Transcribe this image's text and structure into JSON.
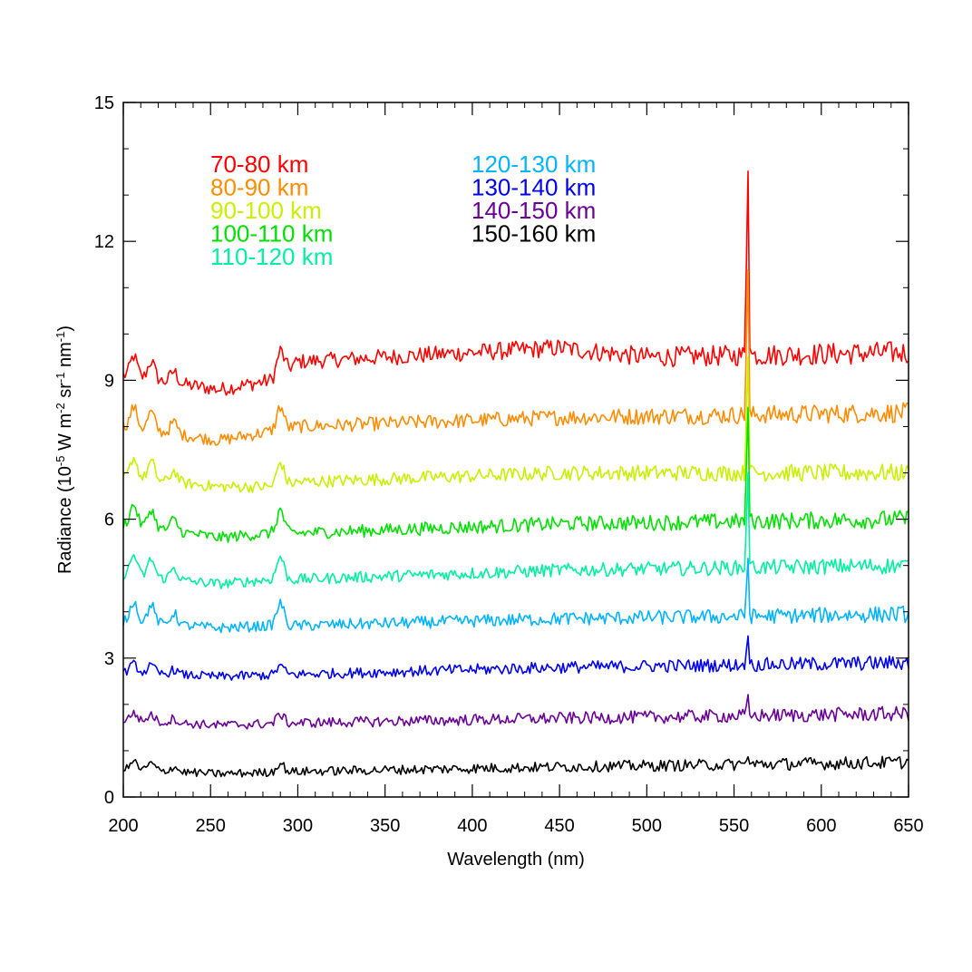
{
  "chart_data": {
    "type": "line",
    "xlabel": "Wavelength (nm)",
    "ylabel_parts": [
      "Radiance (10",
      "-5",
      " W m",
      "-2",
      " sr",
      "-1",
      " nm",
      "-1",
      ")"
    ],
    "xlim": [
      200,
      650
    ],
    "ylim": [
      0,
      15
    ],
    "x_ticks": [
      200,
      250,
      300,
      350,
      400,
      450,
      500,
      550,
      600,
      650
    ],
    "y_ticks": [
      0,
      3,
      6,
      9,
      12,
      15
    ],
    "grid": false,
    "legend_position": "top-left, two columns",
    "peak_wavelength_nm": 557.7,
    "x_sampling": {
      "start": 200,
      "end": 650,
      "step": 1
    },
    "series": [
      {
        "name": "70-80 km",
        "color": "#ff0000",
        "baseline": [
          [
            200,
            9.1
          ],
          [
            255,
            8.8
          ],
          [
            285,
            9.0
          ],
          [
            300,
            9.4
          ],
          [
            450,
            9.7
          ],
          [
            500,
            9.5
          ],
          [
            650,
            9.6
          ]
        ],
        "peak": 14.3,
        "noise": 0.14
      },
      {
        "name": "80-90 km",
        "color": "#ff8c00",
        "baseline": [
          [
            200,
            8.0
          ],
          [
            255,
            7.7
          ],
          [
            285,
            7.9
          ],
          [
            300,
            8.0
          ],
          [
            450,
            8.2
          ],
          [
            650,
            8.3
          ]
        ],
        "peak": 12.0,
        "noise": 0.12
      },
      {
        "name": "90-100 km",
        "color": "#c8f000",
        "baseline": [
          [
            200,
            6.9
          ],
          [
            255,
            6.7
          ],
          [
            285,
            6.7
          ],
          [
            300,
            6.8
          ],
          [
            450,
            7.0
          ],
          [
            650,
            7.0
          ]
        ],
        "peak": 10.0,
        "noise": 0.11
      },
      {
        "name": "100-110 km",
        "color": "#00e000",
        "baseline": [
          [
            200,
            5.9
          ],
          [
            255,
            5.6
          ],
          [
            285,
            5.7
          ],
          [
            300,
            5.7
          ],
          [
            450,
            5.9
          ],
          [
            650,
            6.0
          ]
        ],
        "peak": 8.9,
        "noise": 0.11
      },
      {
        "name": "110-120 km",
        "color": "#00f0a0",
        "baseline": [
          [
            200,
            4.8
          ],
          [
            255,
            4.6
          ],
          [
            285,
            4.7
          ],
          [
            300,
            4.7
          ],
          [
            450,
            4.9
          ],
          [
            650,
            5.0
          ]
        ],
        "peak": 7.4,
        "noise": 0.1
      },
      {
        "name": "120-130 km",
        "color": "#00b4ff",
        "baseline": [
          [
            200,
            3.8
          ],
          [
            255,
            3.65
          ],
          [
            285,
            3.7
          ],
          [
            300,
            3.7
          ],
          [
            450,
            3.85
          ],
          [
            650,
            3.95
          ]
        ],
        "peak": 5.4,
        "noise": 0.1
      },
      {
        "name": "130-140 km",
        "color": "#0000ee",
        "baseline": [
          [
            200,
            2.7
          ],
          [
            255,
            2.6
          ],
          [
            300,
            2.65
          ],
          [
            450,
            2.8
          ],
          [
            650,
            2.9
          ]
        ],
        "peak": 3.6,
        "noise": 0.09
      },
      {
        "name": "140-150 km",
        "color": "#6a0096",
        "baseline": [
          [
            200,
            1.65
          ],
          [
            255,
            1.55
          ],
          [
            300,
            1.6
          ],
          [
            450,
            1.7
          ],
          [
            650,
            1.8
          ]
        ],
        "peak": 2.3,
        "noise": 0.09
      },
      {
        "name": "150-160 km",
        "color": "#000000",
        "baseline": [
          [
            200,
            0.6
          ],
          [
            255,
            0.5
          ],
          [
            300,
            0.55
          ],
          [
            450,
            0.65
          ],
          [
            650,
            0.75
          ]
        ],
        "peak": 0.9,
        "noise": 0.08
      }
    ]
  }
}
